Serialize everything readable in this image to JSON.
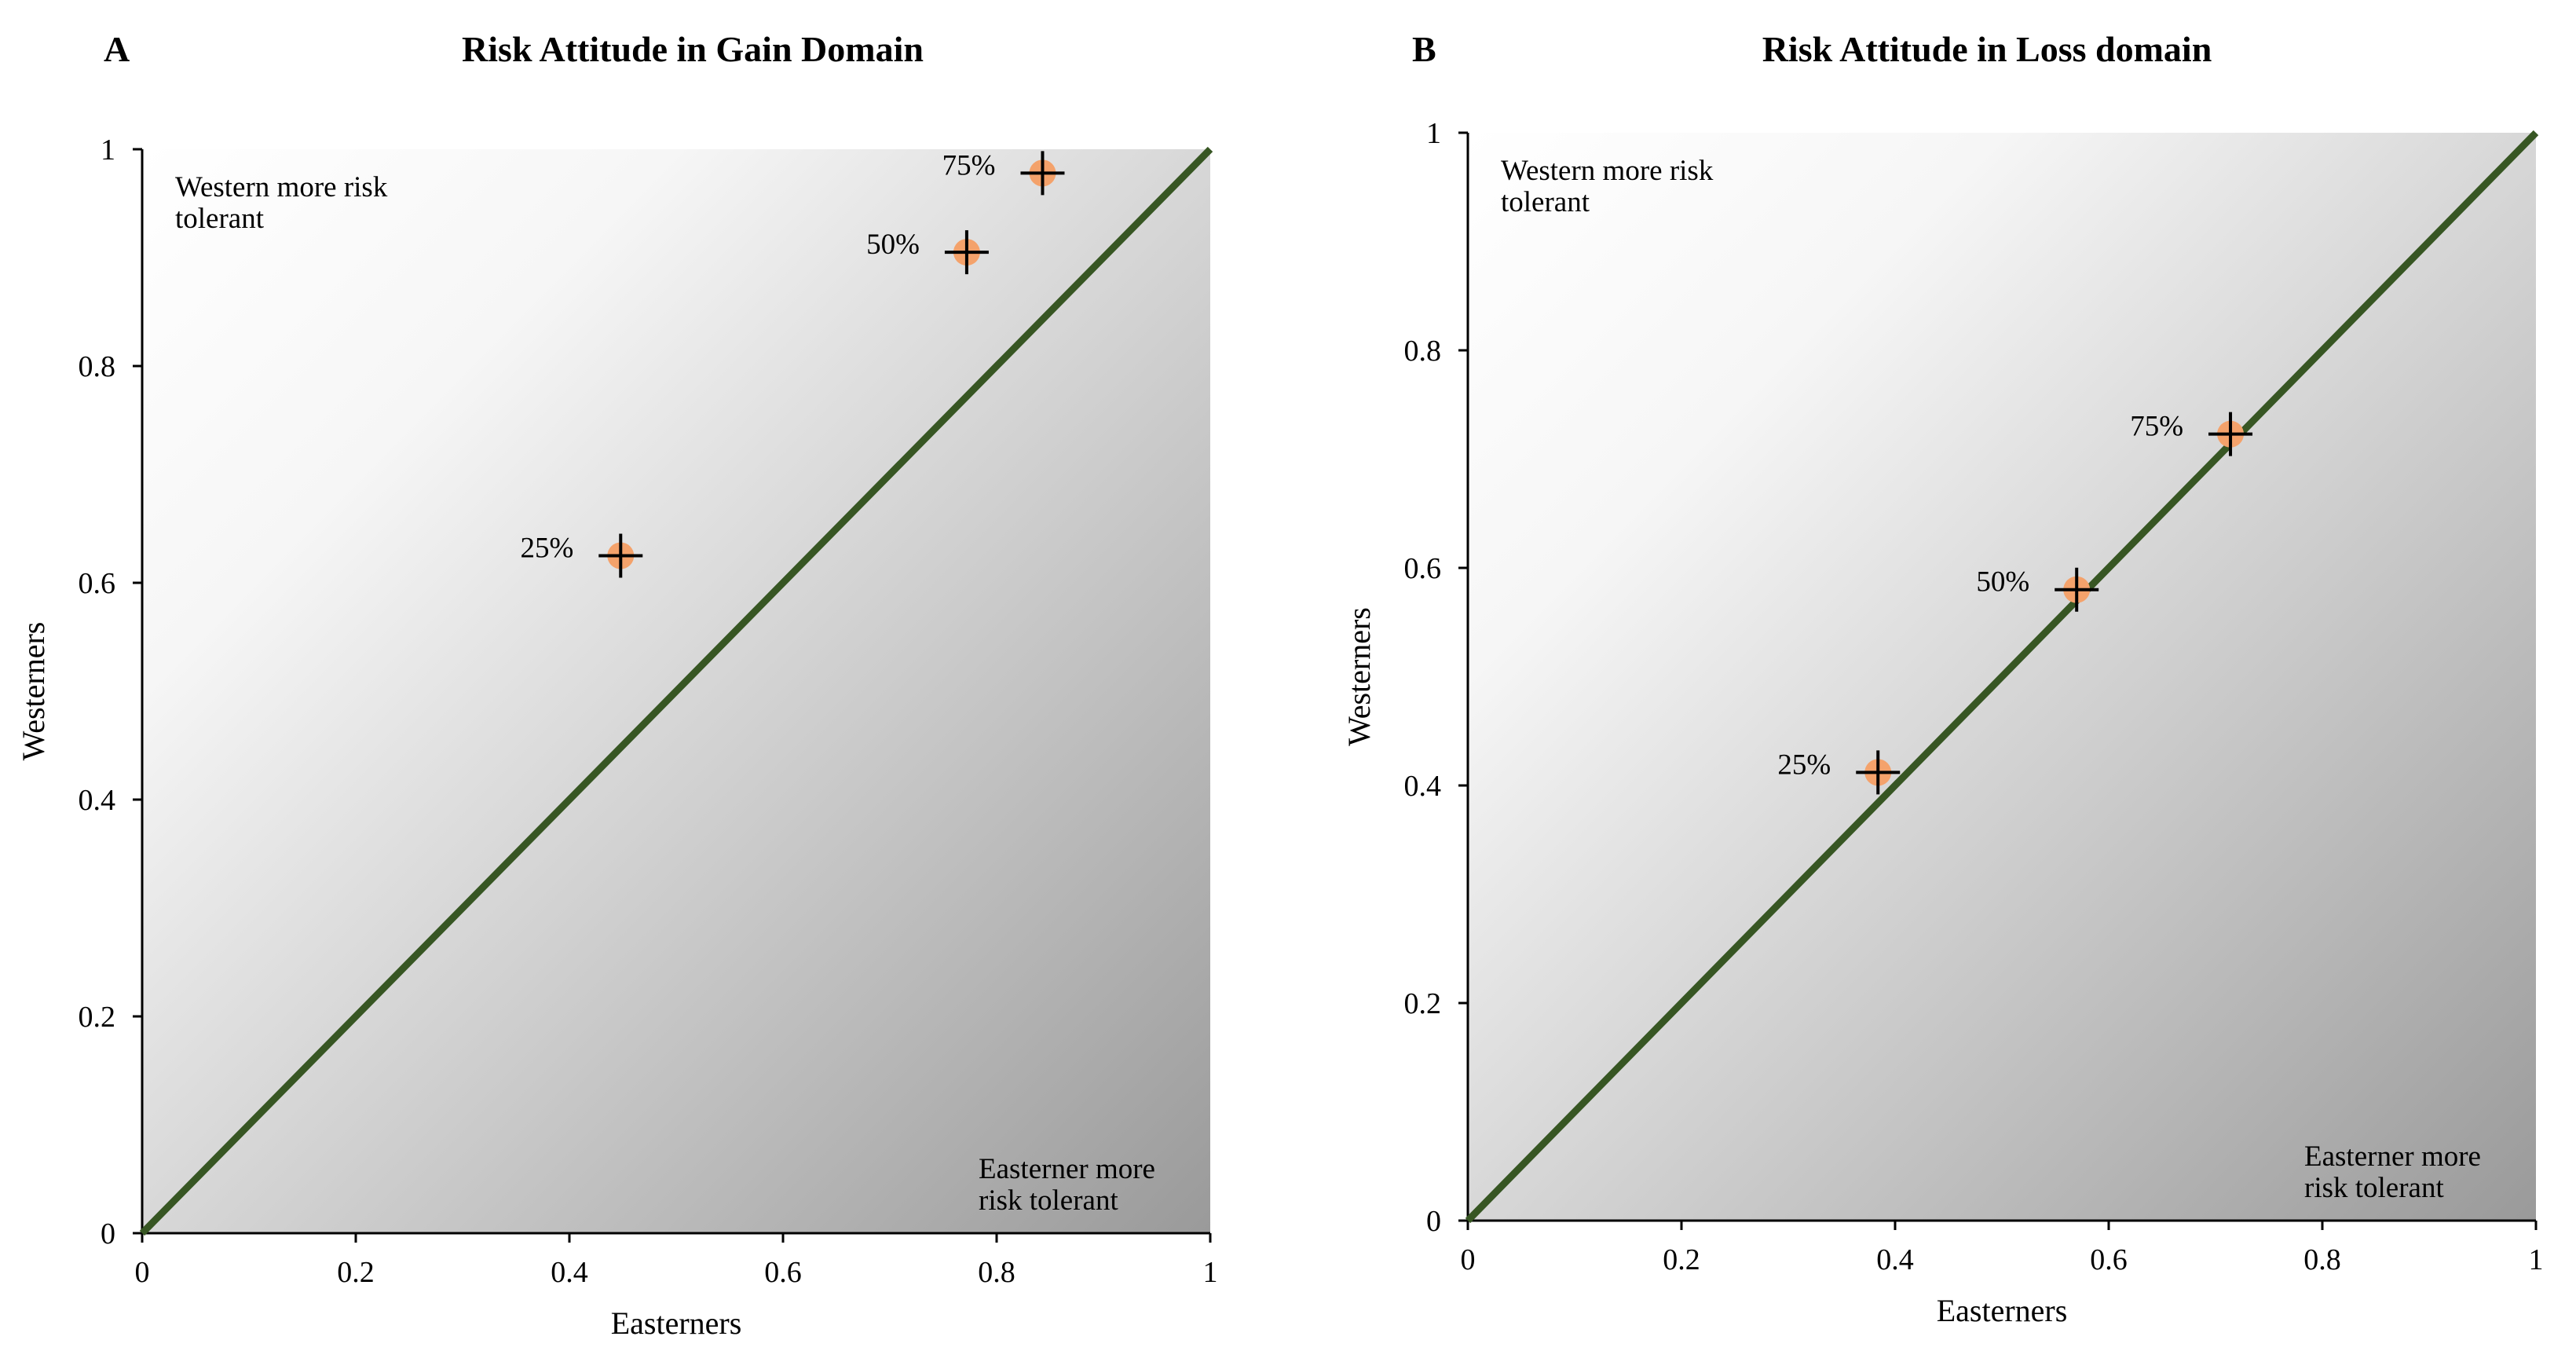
{
  "chart_data": [
    {
      "type": "scatter",
      "panel": "A",
      "title": "Risk Attitude in Gain Domain",
      "xlabel": "Easterners",
      "ylabel": "Westerners",
      "xlim": [
        0,
        1
      ],
      "ylim": [
        0,
        1
      ],
      "xticks": [
        "0",
        "0.2",
        "0.4",
        "0.6",
        "0.8",
        "1"
      ],
      "yticks": [
        "0",
        "0.2",
        "0.4",
        "0.6",
        "0.8",
        "1"
      ],
      "grid": false,
      "diagonal": {
        "from": [
          0,
          0
        ],
        "to": [
          1,
          1
        ],
        "color": "#375623"
      },
      "annotations": {
        "upper_left": [
          "Western more risk",
          "tolerant"
        ],
        "lower_right": [
          "Easterner more",
          "risk tolerant"
        ]
      },
      "points": [
        {
          "label": "25%",
          "x": 0.448,
          "y": 0.625
        },
        {
          "label": "50%",
          "x": 0.772,
          "y": 0.905
        },
        {
          "label": "75%",
          "x": 0.843,
          "y": 0.978
        }
      ],
      "marker_color": "#f4a26b",
      "errorbar_color": "#000000"
    },
    {
      "type": "scatter",
      "panel": "B",
      "title": "Risk Attitude in Loss domain",
      "xlabel": "Easterners",
      "ylabel": "Westerners",
      "xlim": [
        0,
        1
      ],
      "ylim": [
        0,
        1
      ],
      "xticks": [
        "0",
        "0.2",
        "0.4",
        "0.6",
        "0.8",
        "1"
      ],
      "yticks": [
        "0",
        "0.2",
        "0.4",
        "0.6",
        "0.8",
        "1"
      ],
      "grid": false,
      "diagonal": {
        "from": [
          0,
          0
        ],
        "to": [
          1,
          1
        ],
        "color": "#375623"
      },
      "annotations": {
        "upper_left": [
          "Western more risk",
          "tolerant"
        ],
        "lower_right": [
          "Easterner more",
          "risk tolerant"
        ]
      },
      "points": [
        {
          "label": "25%",
          "x": 0.384,
          "y": 0.412
        },
        {
          "label": "50%",
          "x": 0.57,
          "y": 0.58
        },
        {
          "label": "75%",
          "x": 0.714,
          "y": 0.723
        }
      ],
      "marker_color": "#f4a26b",
      "errorbar_color": "#000000"
    }
  ]
}
